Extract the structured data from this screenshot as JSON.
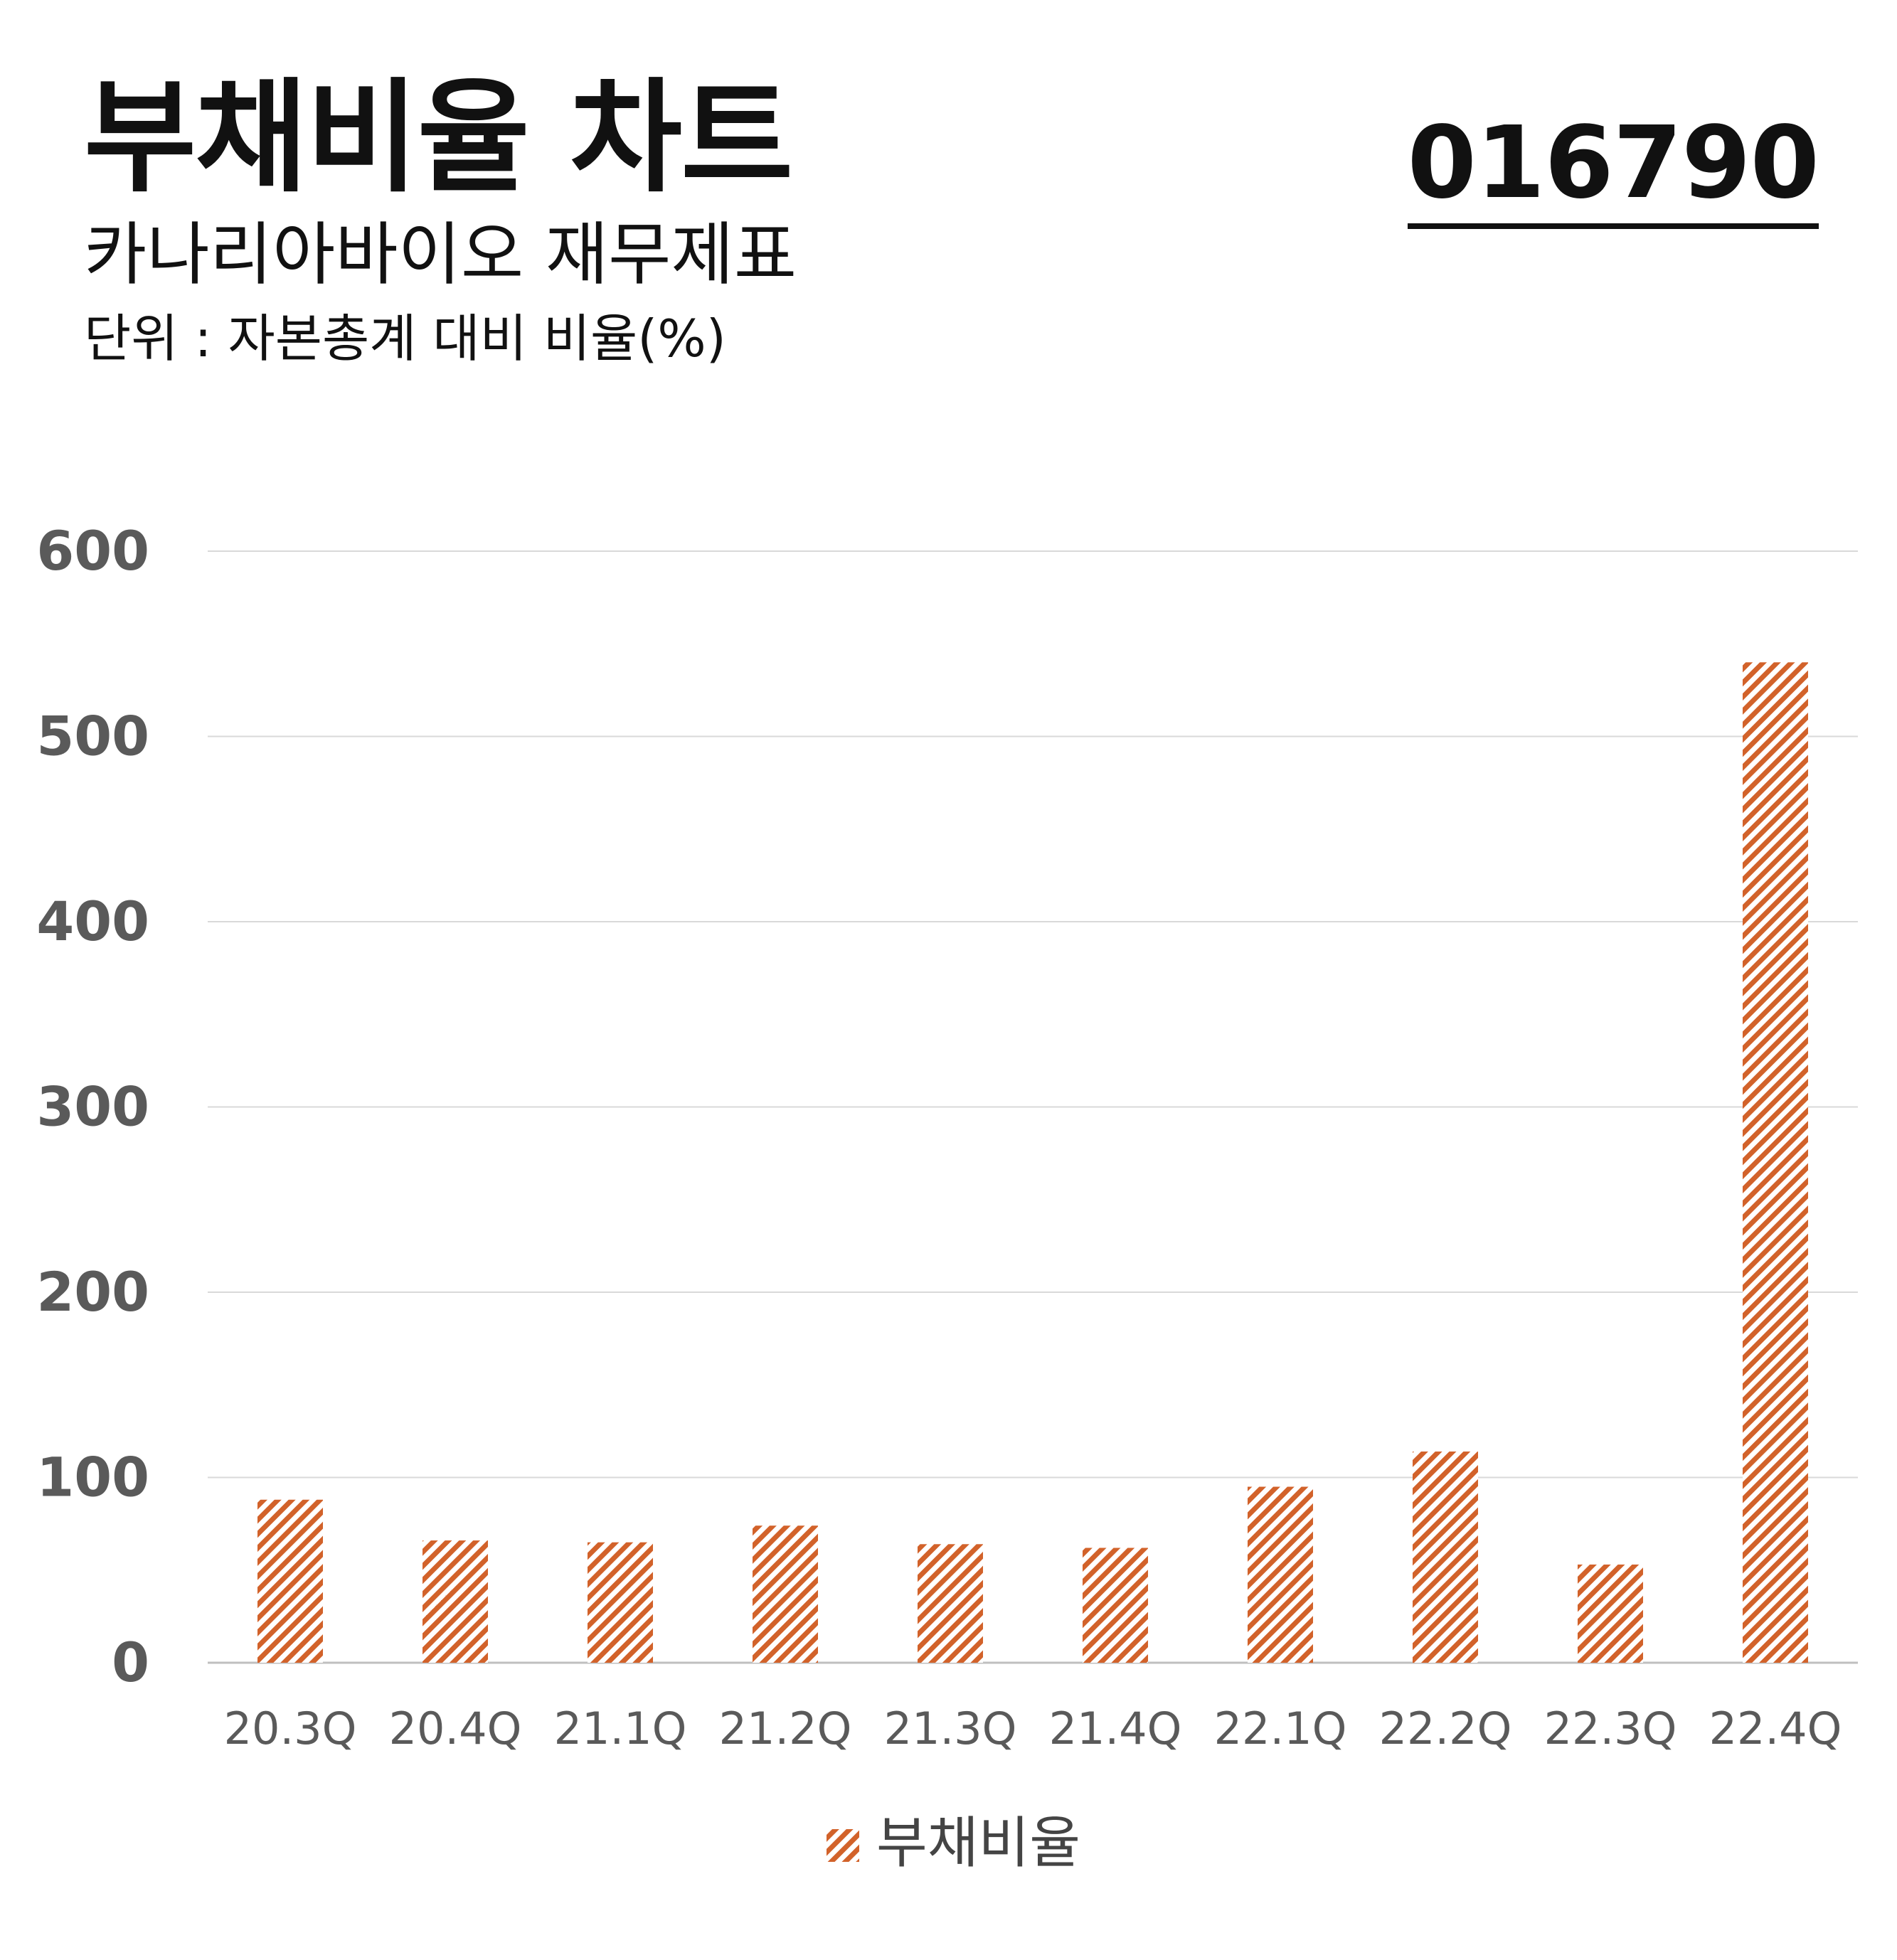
{
  "header": {
    "title": "부채비율 차트",
    "subtitle": "카나리아바이오 재무제표",
    "unit": "단위 : 자본총계 대비 비율(%)",
    "code": "016790"
  },
  "colors": {
    "bar": "#d2622a",
    "grid": "#d9d9d9",
    "axis_label": "#5a5a5a"
  },
  "chart_data": {
    "type": "bar",
    "categories": [
      "20.3Q",
      "20.4Q",
      "21.1Q",
      "21.2Q",
      "21.3Q",
      "21.4Q",
      "22.1Q",
      "22.2Q",
      "22.3Q",
      "22.4Q"
    ],
    "series": [
      {
        "name": "부채비율",
        "values": [
          88,
          66,
          65,
          74,
          64,
          62,
          95,
          114,
          53,
          540
        ]
      }
    ],
    "ylim": [
      0,
      600
    ],
    "yticks": [
      0,
      100,
      200,
      300,
      400,
      500,
      600
    ],
    "grid": true,
    "legend_position": "bottom",
    "pattern": "diagonal-hatch"
  }
}
